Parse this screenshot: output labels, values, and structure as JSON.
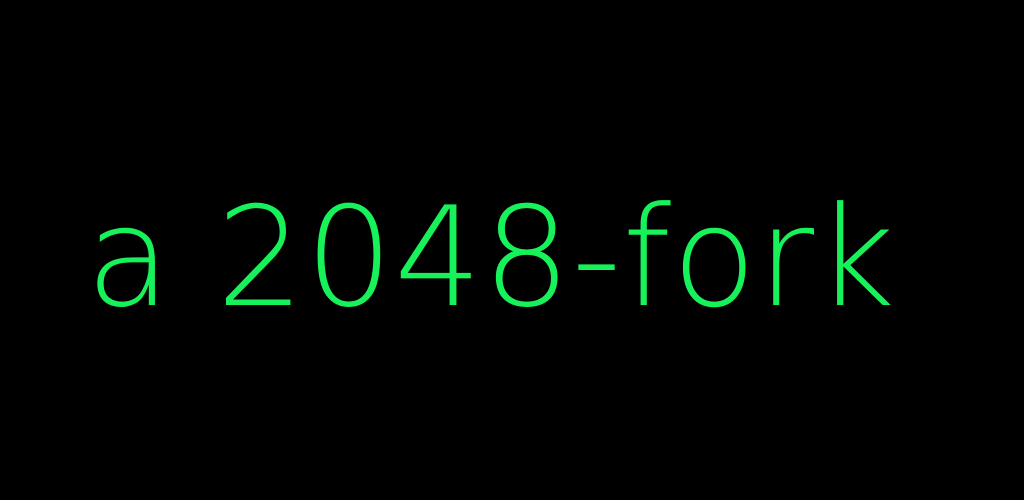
{
  "splash": {
    "title": "a 2048-fork"
  },
  "colors": {
    "background": "#000000",
    "title_text": "#18f25a"
  }
}
